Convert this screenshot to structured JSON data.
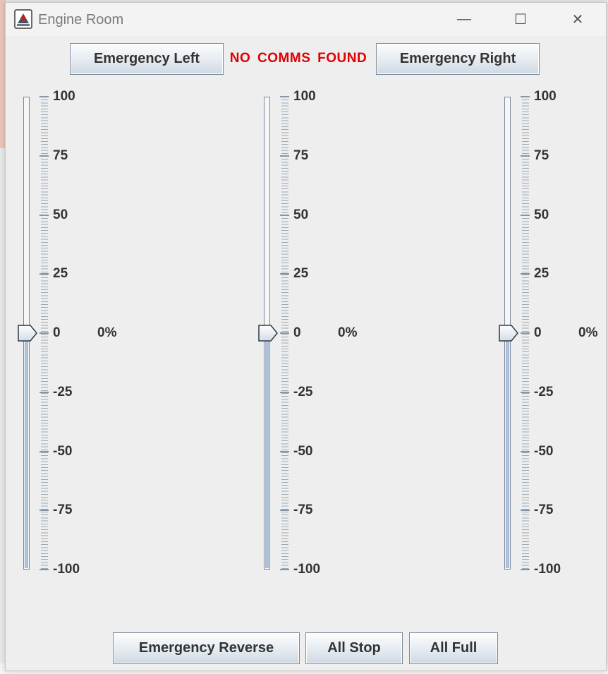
{
  "window": {
    "title": "Engine Room",
    "minimize_glyph": "—",
    "maximize_glyph": "☐",
    "close_glyph": "✕"
  },
  "controls": {
    "emergency_left": "Emergency Left",
    "status": "NO COMMS FOUND",
    "emergency_right": "Emergency Right",
    "emergency_reverse": "Emergency Reverse",
    "all_stop": "All Stop",
    "all_full": "All Full"
  },
  "colors": {
    "status": "#e00000",
    "track_fill": "#b4c6e0"
  },
  "sliders": {
    "scale": {
      "min": -100,
      "max": 100
    },
    "labels": [
      "100",
      "75",
      "50",
      "25",
      "0",
      "-25",
      "-50",
      "-75",
      "-100"
    ],
    "items": [
      {
        "name": "left-engine",
        "value": 0,
        "readout": "0%"
      },
      {
        "name": "center-engine",
        "value": 0,
        "readout": "0%"
      },
      {
        "name": "right-engine",
        "value": 0,
        "readout": "0%"
      }
    ]
  }
}
